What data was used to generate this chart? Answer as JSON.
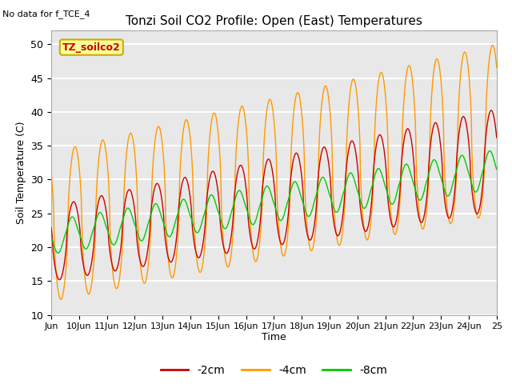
{
  "title": "Tonzi Soil CO2 Profile: Open (East) Temperatures",
  "no_data_label": "No data for f_TCE_4",
  "site_label": "TZ_soilco2",
  "xlabel": "Time",
  "ylabel": "Soil Temperature (C)",
  "ylim": [
    10,
    52
  ],
  "yticks": [
    10,
    15,
    20,
    25,
    30,
    35,
    40,
    45,
    50
  ],
  "x_tick_days": [
    9,
    10,
    11,
    12,
    13,
    14,
    15,
    16,
    17,
    18,
    19,
    20,
    21,
    22,
    23,
    24,
    25
  ],
  "x_tick_labels": [
    "Jun",
    "10Jun",
    "11Jun",
    "12Jun",
    "13Jun",
    "14Jun",
    "15Jun",
    "16Jun",
    "17Jun",
    "18Jun",
    "19Jun",
    "20Jun",
    "21Jun",
    "22Jun",
    "23Jun",
    "24Jun",
    "25"
  ],
  "colors": {
    "neg2cm": "#cc0000",
    "neg4cm": "#ff9900",
    "neg8cm": "#00cc00"
  },
  "legend_labels": [
    "-2cm",
    "-4cm",
    "-8cm"
  ],
  "plot_bg_color": "#e8e8e8",
  "grid_color": "white",
  "site_label_bg": "#ffff99",
  "site_label_border": "#ccaa00",
  "fig_width": 6.4,
  "fig_height": 4.8,
  "fig_dpi": 100
}
